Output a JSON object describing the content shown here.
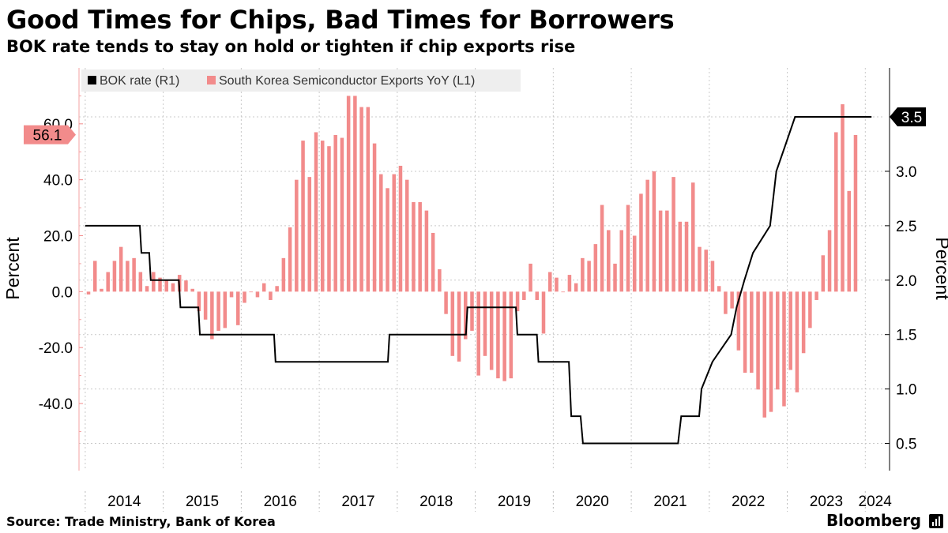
{
  "title": "Good Times for Chips, Bad Times for Borrowers",
  "subtitle": "BOK rate tends to stay on hold or tighten if chip exports rise",
  "source": "Source: Trade Ministry, Bank of Korea",
  "brand": "Bloomberg",
  "chart_data": {
    "type": "bar+line",
    "legend": {
      "position": "top-left",
      "items": [
        {
          "label": "BOK rate (R1)",
          "color": "#000000"
        },
        {
          "label": "South Korea Semiconductor Exports YoY (L1)",
          "color": "#f28b8b"
        }
      ]
    },
    "x_range": [
      2013.92,
      2024.25
    ],
    "x_ticks": [
      "2014",
      "2015",
      "2016",
      "2017",
      "2018",
      "2019",
      "2020",
      "2021",
      "2022",
      "2023",
      "2024"
    ],
    "left_axis": {
      "label": "Percent",
      "min": -64,
      "max": 80,
      "ticks": [
        "-40.0",
        "-20.0",
        "0.0",
        "20.0",
        "40.0",
        "60.0"
      ]
    },
    "right_axis": {
      "label": "Percent",
      "min": 0.25,
      "max": 3.95,
      "ticks": [
        "0.5",
        "1.0",
        "1.5",
        "2.0",
        "2.5",
        "3.0"
      ]
    },
    "callouts": {
      "exports_last": "56.1",
      "rate_last": "3.5"
    },
    "exports_start": "2014-01",
    "exports_yoy": [
      -1,
      11,
      1,
      7,
      11,
      16,
      11,
      12,
      7,
      2,
      7,
      5,
      4,
      3,
      6,
      4,
      1,
      -7,
      -10,
      -17,
      -14,
      -13,
      -2,
      -12,
      -4,
      0,
      -2,
      3,
      -3,
      2,
      12,
      23,
      40,
      54,
      41,
      57,
      54,
      52,
      56,
      55,
      70,
      70,
      66,
      66,
      53,
      42,
      37,
      42,
      45,
      40,
      32,
      32,
      29,
      21,
      8,
      -8,
      -23,
      -25,
      -17,
      -14,
      -30,
      -23,
      -28,
      -31,
      -32,
      -31,
      -7,
      -3,
      10,
      -3,
      -15,
      7,
      5,
      0,
      6,
      3,
      12,
      11,
      17,
      31,
      22,
      10,
      22,
      31,
      20,
      35,
      40,
      43,
      29,
      29,
      41,
      25,
      25,
      39,
      16,
      15,
      11,
      2,
      -8,
      -6,
      -21,
      -29,
      -29,
      -35,
      -45,
      -43,
      -35,
      -41,
      -28,
      -36,
      -22,
      -13,
      -3,
      13,
      22,
      57,
      67,
      36,
      56
    ],
    "bok_rate": [
      [
        2014.0,
        2.5
      ],
      [
        2014.7,
        2.5
      ],
      [
        2014.72,
        2.25
      ],
      [
        2014.82,
        2.25
      ],
      [
        2014.84,
        2.0
      ],
      [
        2015.2,
        2.0
      ],
      [
        2015.22,
        1.75
      ],
      [
        2015.45,
        1.75
      ],
      [
        2015.47,
        1.5
      ],
      [
        2016.42,
        1.5
      ],
      [
        2016.44,
        1.25
      ],
      [
        2017.88,
        1.25
      ],
      [
        2017.9,
        1.5
      ],
      [
        2018.88,
        1.5
      ],
      [
        2018.9,
        1.75
      ],
      [
        2019.52,
        1.75
      ],
      [
        2019.54,
        1.5
      ],
      [
        2019.79,
        1.5
      ],
      [
        2019.81,
        1.25
      ],
      [
        2020.2,
        1.25
      ],
      [
        2020.23,
        0.75
      ],
      [
        2020.35,
        0.75
      ],
      [
        2020.38,
        0.5
      ],
      [
        2021.6,
        0.5
      ],
      [
        2021.64,
        0.75
      ],
      [
        2021.87,
        0.75
      ],
      [
        2021.9,
        1.0
      ],
      [
        2022.04,
        1.25
      ],
      [
        2022.28,
        1.5
      ],
      [
        2022.35,
        1.75
      ],
      [
        2022.45,
        2.0
      ],
      [
        2022.56,
        2.25
      ],
      [
        2022.78,
        2.5
      ],
      [
        2022.86,
        3.0
      ],
      [
        2022.98,
        3.25
      ],
      [
        2023.1,
        3.5
      ],
      [
        2024.08,
        3.5
      ]
    ]
  }
}
